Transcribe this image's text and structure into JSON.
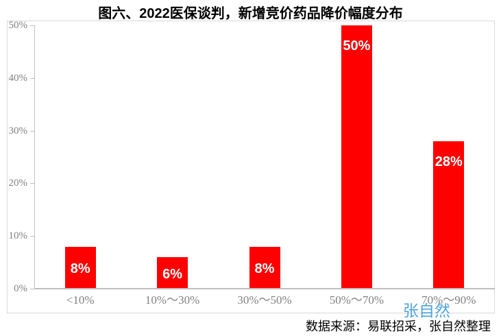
{
  "title": "图六、2022医保谈判，新增竞价药品降价幅度分布",
  "source_note": "数据来源：易联招采，张自然整理",
  "watermark": "张自然",
  "colors": {
    "bar": "#ff0000",
    "bar_label_text": "#ffffff",
    "axis_line": "#bfbfbf",
    "frame_border": "#d9d9d9",
    "tick_text": "#808080",
    "title_text": "#000000",
    "source_text": "#000000",
    "watermark_text": "#3a9ad9"
  },
  "chart_data": {
    "type": "bar",
    "title": "图六、2022医保谈判，新增竞价药品降价幅度分布",
    "categories": [
      "<10%",
      "10%～30%",
      "30%～50%",
      "50%～70%",
      "70%～90%"
    ],
    "values": [
      8,
      6,
      8,
      50,
      28
    ],
    "value_labels": [
      "8%",
      "6%",
      "8%",
      "50%",
      "28%"
    ],
    "xlabel": "",
    "ylabel": "",
    "ylim": [
      0,
      50
    ],
    "ytick_values": [
      0,
      10,
      20,
      30,
      40,
      50
    ],
    "ytick_labels": [
      "0%",
      "10%",
      "20%",
      "30%",
      "40%",
      "50%"
    ],
    "grid": false,
    "legend": false,
    "label_position": "inside-end",
    "bar_color": "#ff0000"
  }
}
